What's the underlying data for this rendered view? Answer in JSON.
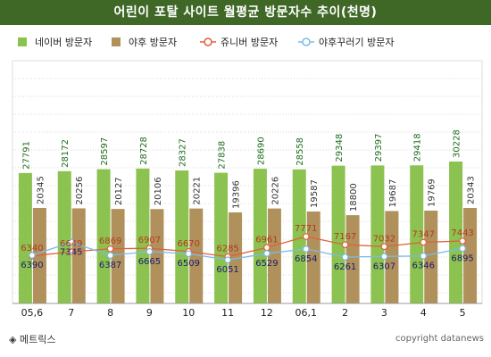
{
  "header": {
    "title": "어린이 포탈 사이트 월평균 방문자수 추이(천명)"
  },
  "footer": {
    "source": "◈ 메트릭스",
    "copyright": "copyright datanews"
  },
  "colors": {
    "naver": "#8cc24f",
    "yahoo": "#b0915c",
    "junibeo": "#e0603a",
    "yahoo_kkureogi": "#7bbbe6",
    "title_bg": "#3f6826"
  },
  "chart_data": {
    "type": "bar",
    "title": "어린이 포탈 사이트 월평균 방문자수 추이(천명)",
    "categories": [
      "05,6",
      "7",
      "8",
      "9",
      "10",
      "11",
      "12",
      "06,1",
      "2",
      "3",
      "4",
      "5"
    ],
    "series": [
      {
        "name": "네이버 방문자",
        "kind": "bar",
        "values": [
          27791,
          28172,
          28597,
          28728,
          28327,
          27838,
          28690,
          28558,
          29348,
          29397,
          29418,
          30228
        ]
      },
      {
        "name": "야후 방문자",
        "kind": "bar",
        "values": [
          20345,
          20256,
          20127,
          20106,
          20221,
          19396,
          20226,
          19587,
          18800,
          19687,
          19769,
          20343
        ]
      },
      {
        "name": "쥬니버 방문자",
        "kind": "line",
        "values": [
          6340,
          6649,
          6869,
          6907,
          6670,
          6285,
          6961,
          7771,
          7167,
          7032,
          7347,
          7443
        ]
      },
      {
        "name": "야후꾸러기 방문자",
        "kind": "line",
        "values": [
          6390,
          7345,
          6387,
          6665,
          6509,
          6051,
          6529,
          6854,
          6261,
          6307,
          6346,
          6895
        ]
      }
    ],
    "grid": true,
    "legend_position": "top-left"
  }
}
